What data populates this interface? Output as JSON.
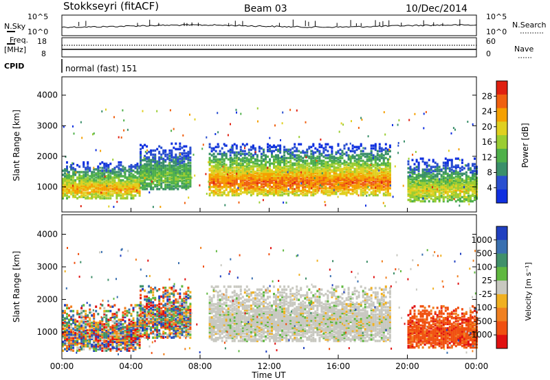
{
  "header": {
    "radar": "Stokkseyri (fitACF)",
    "beam": "Beam 03",
    "date": "10/Dec/2014"
  },
  "top_panels": {
    "nsky_label": "N.Sky",
    "nsky_ticks": [
      "10^5",
      "10^0"
    ],
    "nsearch_label": "N.Search",
    "nsearch_ticks": [
      "10^5",
      "10^0"
    ],
    "freq_label_1": "Freq.",
    "freq_label_2": "[MHz]",
    "freq_ticks": [
      "18",
      "8"
    ],
    "nave_label": "Nave",
    "nave_ticks": [
      "60",
      "0"
    ],
    "cpid_label": "CPID",
    "cpid_value": "normal (fast) 151"
  },
  "chart_data": [
    {
      "type": "heatmap",
      "name": "power",
      "ylabel": "Slant Range [km]",
      "ylim": [
        180,
        4600
      ],
      "yticks": [
        "1000",
        "2000",
        "3000",
        "4000"
      ],
      "colorbar_label": "Power [dB]",
      "colorbar_ticks": [
        "4",
        "8",
        "12",
        "16",
        "20",
        "24",
        "28"
      ],
      "colorbar_range": [
        0,
        32
      ],
      "colors": [
        "#1030e0",
        "#2a4fd0",
        "#3a8f6a",
        "#4fb04a",
        "#9acd32",
        "#e0d020",
        "#f5a000",
        "#f06010",
        "#e02010"
      ],
      "regions": [
        {
          "t": [
            0.0,
            4.5
          ],
          "range": [
            600,
            1800
          ],
          "peak": 24
        },
        {
          "t": [
            4.5,
            7.5
          ],
          "range": [
            900,
            2400
          ],
          "peak": 14
        },
        {
          "t": [
            8.5,
            19.0
          ],
          "range": [
            700,
            2400
          ],
          "peak": 28
        },
        {
          "t": [
            20.0,
            24.0
          ],
          "range": [
            500,
            1900
          ],
          "peak": 20
        }
      ]
    },
    {
      "type": "heatmap",
      "name": "velocity",
      "ylabel": "Slant Range [km]",
      "ylim": [
        180,
        4600
      ],
      "yticks": [
        "1000",
        "2000",
        "3000",
        "4000"
      ],
      "xlabel": "Time UT",
      "xticks": [
        "00:00",
        "04:00",
        "08:00",
        "12:00",
        "16:00",
        "20:00",
        "00:00"
      ],
      "colorbar_label": "Velocity [m s⁻¹]",
      "colorbar_ticks": [
        "1000",
        "500",
        "100",
        "25",
        "-25",
        "-100",
        "-500",
        "-1000"
      ],
      "colors": [
        "#2040c0",
        "#3a70b0",
        "#40906a",
        "#60b840",
        "#c8c8c0",
        "#f0b020",
        "#f08020",
        "#f05010",
        "#e01010"
      ],
      "regions": [
        {
          "t": [
            0.0,
            4.5
          ],
          "range": [
            400,
            1800
          ],
          "velocity": "mixed"
        },
        {
          "t": [
            4.5,
            7.5
          ],
          "range": [
            800,
            2400
          ],
          "velocity": "mixed"
        },
        {
          "t": [
            8.5,
            19.0
          ],
          "range": [
            700,
            2400
          ],
          "velocity": 0
        },
        {
          "t": [
            20.0,
            24.0
          ],
          "range": [
            500,
            1800
          ],
          "velocity": -700
        }
      ]
    }
  ]
}
